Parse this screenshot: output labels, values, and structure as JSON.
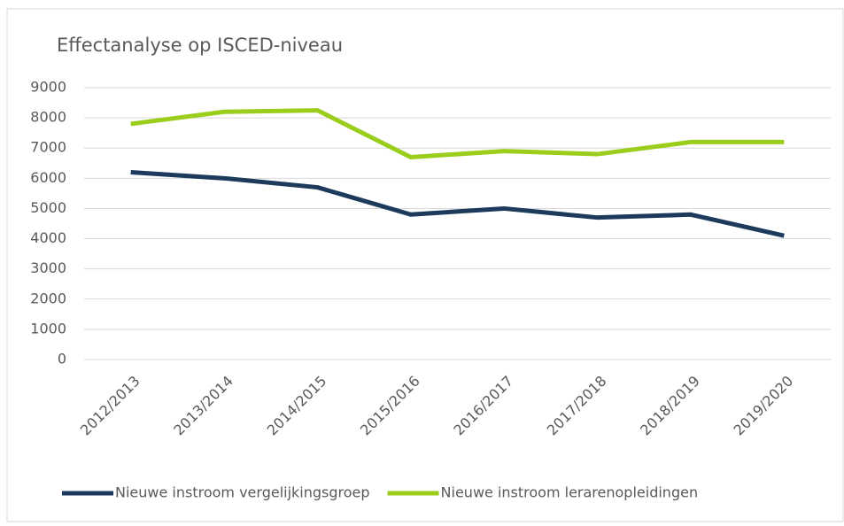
{
  "chart_data": {
    "type": "line",
    "title": "Effectanalyse op ISCED-niveau",
    "categories": [
      "2012/2013",
      "2013/2014",
      "2014/2015",
      "2015/2016",
      "2016/2017",
      "2017/2018",
      "2018/2019",
      "2019/2020"
    ],
    "series": [
      {
        "name": "Nieuwe instroom vergelijkingsgroep",
        "color": "#1b3a5c",
        "values": [
          6200,
          6000,
          5700,
          4800,
          5000,
          4700,
          4800,
          4100
        ]
      },
      {
        "name": "Nieuwe instroom lerarenopleidingen",
        "color": "#9acd1c",
        "values": [
          7800,
          8200,
          8250,
          6700,
          6900,
          6800,
          7200,
          7200
        ]
      }
    ],
    "ylim": [
      0,
      9000
    ],
    "yticks": [
      0,
      1000,
      2000,
      3000,
      4000,
      5000,
      6000,
      7000,
      8000,
      9000
    ],
    "grid": true,
    "legend": "bottom"
  }
}
